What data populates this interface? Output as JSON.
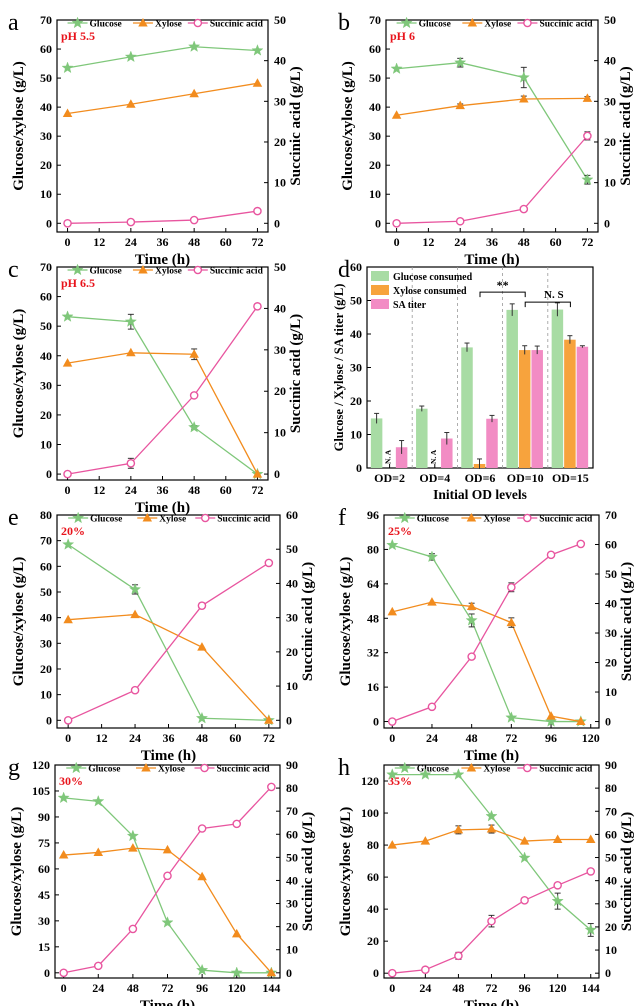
{
  "figure": {
    "panel_count": 8
  },
  "colors": {
    "glucose": "#7fc77a",
    "xylose": "#f28c1e",
    "sa": "#e8559f",
    "bar_glucose": "#a8dca4",
    "bar_xylose": "#f7a33d",
    "bar_sa": "#f28cc4",
    "annotation_red": "#e8131b"
  },
  "chart_data": [
    {
      "panel": "a",
      "type": "line",
      "annotation": "pH 5.5",
      "xlabel": "Time (h)",
      "ylabel_left": "Glucose/xylose (g/L)",
      "ylabel_right": "Succinic acid (g/L)",
      "x_ticks": [
        0,
        12,
        24,
        36,
        48,
        60,
        72
      ],
      "xlim": [
        -4,
        76
      ],
      "y_left_ticks": [
        0,
        10,
        20,
        30,
        40,
        50,
        60,
        70
      ],
      "ylim_left": [
        -3,
        70
      ],
      "y_right_ticks": [
        0,
        10,
        20,
        30,
        40,
        50
      ],
      "ylim_right": [
        -2.14,
        50
      ],
      "series": [
        {
          "name": "Glucose",
          "axis": "left",
          "marker": "star",
          "x": [
            0,
            24,
            48,
            72
          ],
          "values": [
            53.5,
            57.3,
            60.8,
            59.5
          ],
          "err": [
            0,
            0,
            0,
            0
          ]
        },
        {
          "name": "Xylose",
          "axis": "left",
          "marker": "triangle",
          "x": [
            0,
            24,
            48,
            72
          ],
          "values": [
            37.8,
            41.0,
            44.6,
            48.2
          ],
          "err": [
            0,
            0,
            0,
            0
          ]
        },
        {
          "name": "Succinic acid",
          "axis": "right",
          "marker": "circle",
          "x": [
            0,
            24,
            48,
            72
          ],
          "values": [
            0.0,
            0.3,
            0.8,
            3.0
          ],
          "err": [
            0,
            0,
            0,
            0
          ]
        }
      ]
    },
    {
      "panel": "b",
      "type": "line",
      "annotation": "pH 6",
      "xlabel": "Time (h)",
      "ylabel_left": "Glucose/xylose (g/L)",
      "ylabel_right": "Succinic acid (g/L)",
      "x_ticks": [
        0,
        12,
        24,
        36,
        48,
        60,
        72
      ],
      "xlim": [
        -4,
        76
      ],
      "y_left_ticks": [
        0,
        10,
        20,
        30,
        40,
        50,
        60,
        70
      ],
      "ylim_left": [
        -3,
        70
      ],
      "y_right_ticks": [
        0,
        10,
        20,
        30,
        40,
        50
      ],
      "ylim_right": [
        -2.14,
        50
      ],
      "series": [
        {
          "name": "Glucose",
          "axis": "left",
          "marker": "star",
          "x": [
            0,
            24,
            48,
            72
          ],
          "values": [
            53.2,
            55.3,
            50.2,
            15.0
          ],
          "err": [
            0,
            1.5,
            3.5,
            1.5
          ]
        },
        {
          "name": "Xylose",
          "axis": "left",
          "marker": "triangle",
          "x": [
            0,
            24,
            48,
            72
          ],
          "values": [
            37.2,
            40.5,
            42.8,
            43.0
          ],
          "err": [
            0,
            0.6,
            1.0,
            0.6
          ]
        },
        {
          "name": "Succinic acid",
          "axis": "right",
          "marker": "circle",
          "x": [
            0,
            24,
            48,
            72
          ],
          "values": [
            0.0,
            0.5,
            3.5,
            21.5
          ],
          "err": [
            0,
            0,
            0.4,
            1.0
          ]
        }
      ]
    },
    {
      "panel": "c",
      "type": "line",
      "annotation": "pH 6.5",
      "xlabel": "Time (h)",
      "ylabel_left": "Glucose/xylose (g/L)",
      "ylabel_right": "Succinic acid (g/L)",
      "x_ticks": [
        0,
        12,
        24,
        36,
        48,
        60,
        72
      ],
      "xlim": [
        -4,
        76
      ],
      "y_left_ticks": [
        0,
        10,
        20,
        30,
        40,
        50,
        60,
        70
      ],
      "ylim_left": [
        -2,
        70
      ],
      "y_right_ticks": [
        0,
        10,
        20,
        30,
        40,
        50
      ],
      "ylim_right": [
        -1.43,
        50
      ],
      "series": [
        {
          "name": "Glucose",
          "axis": "left",
          "marker": "star",
          "x": [
            0,
            24,
            48,
            72
          ],
          "values": [
            53.2,
            51.5,
            15.8,
            0.0
          ],
          "err": [
            0,
            2.5,
            0.6,
            0
          ]
        },
        {
          "name": "Xylose",
          "axis": "left",
          "marker": "triangle",
          "x": [
            0,
            24,
            48,
            72
          ],
          "values": [
            37.5,
            41.0,
            40.5,
            0.0
          ],
          "err": [
            0,
            0,
            1.8,
            0
          ]
        },
        {
          "name": "Succinic acid",
          "axis": "right",
          "marker": "circle",
          "x": [
            0,
            24,
            48,
            72
          ],
          "values": [
            0.0,
            2.6,
            19.0,
            40.5
          ],
          "err": [
            0,
            1.2,
            0,
            0
          ]
        }
      ]
    },
    {
      "panel": "d",
      "type": "bar",
      "xlabel": "Initial OD levels",
      "ylabel": "Glucose / Xylose / SA titer (g/L)",
      "categories": [
        "OD=2",
        "OD=4",
        "OD=6",
        "OD=10",
        "OD=15"
      ],
      "ylim": [
        0,
        60
      ],
      "y_ticks": [
        0,
        10,
        20,
        30,
        40,
        50,
        60
      ],
      "series": [
        {
          "name": "Glucose consumed",
          "values": [
            14.8,
            17.7,
            36.0,
            47.2,
            47.3
          ],
          "err": [
            1.5,
            0.8,
            1.3,
            1.8,
            2.0
          ]
        },
        {
          "name": "Xylose consumed",
          "values": [
            0,
            0,
            1.2,
            35.2,
            38.3
          ],
          "err": [
            0,
            0,
            1.5,
            1.3,
            1.2
          ]
        },
        {
          "name": "SA titer",
          "values": [
            6.2,
            8.8,
            14.7,
            35.2,
            36.2
          ],
          "err": [
            2.0,
            1.8,
            1.0,
            1.2,
            0.3
          ]
        }
      ],
      "na_labels": [
        "N. A",
        "N. A"
      ],
      "significance": [
        {
          "label": "**"
        },
        {
          "label": "N. S"
        }
      ]
    },
    {
      "panel": "e",
      "type": "line",
      "annotation": "20%",
      "xlabel": "Time (h)",
      "ylabel_left": "Glucose/xylose (g/L)",
      "ylabel_right": "Succinic acid (g/L)",
      "x_ticks": [
        0,
        12,
        24,
        36,
        48,
        60,
        72
      ],
      "xlim": [
        -4,
        76
      ],
      "y_left_ticks": [
        0,
        10,
        20,
        30,
        40,
        50,
        60,
        70,
        80
      ],
      "ylim_left": [
        -3,
        80
      ],
      "y_right_ticks": [
        0,
        10,
        20,
        30,
        40,
        50,
        60
      ],
      "ylim_right": [
        -2.25,
        60
      ],
      "series": [
        {
          "name": "Glucose",
          "axis": "left",
          "marker": "star",
          "x": [
            0,
            24,
            48,
            72
          ],
          "values": [
            68.5,
            51.0,
            0.8,
            0.0
          ],
          "err": [
            0,
            1.8,
            0,
            0
          ]
        },
        {
          "name": "Xylose",
          "axis": "left",
          "marker": "triangle",
          "x": [
            0,
            24,
            48,
            72
          ],
          "values": [
            39.2,
            41.2,
            28.5,
            0.0
          ],
          "err": [
            0,
            0,
            0,
            0
          ]
        },
        {
          "name": "Succinic acid",
          "axis": "right",
          "marker": "circle",
          "x": [
            0,
            24,
            48,
            72
          ],
          "values": [
            0.0,
            8.8,
            33.5,
            46.0
          ],
          "err": [
            0,
            0,
            0.8,
            0
          ]
        }
      ]
    },
    {
      "panel": "f",
      "type": "line",
      "annotation": "25%",
      "xlabel": "Time (h)",
      "ylabel_left": "Glucose/xylose (g/L)",
      "ylabel_right": "Succinic acid (g/L)",
      "x_ticks": [
        0,
        24,
        48,
        72,
        96,
        120
      ],
      "xlim": [
        -5,
        125
      ],
      "y_left_ticks": [
        0,
        16,
        32,
        48,
        64,
        80,
        96
      ],
      "ylim_left": [
        -3,
        96
      ],
      "y_right_ticks": [
        0,
        10,
        20,
        30,
        40,
        50,
        60,
        70
      ],
      "ylim_right": [
        -2.19,
        70
      ],
      "series": [
        {
          "name": "Glucose",
          "axis": "left",
          "marker": "star",
          "x": [
            0,
            24,
            48,
            72,
            96,
            114
          ],
          "values": [
            82.0,
            76.5,
            47.0,
            1.8,
            0.0,
            0.0
          ],
          "err": [
            0,
            1.5,
            3.0,
            0,
            0,
            0
          ]
        },
        {
          "name": "Xylose",
          "axis": "left",
          "marker": "triangle",
          "x": [
            0,
            24,
            48,
            72,
            96,
            114
          ],
          "values": [
            51.0,
            55.5,
            53.5,
            46.0,
            2.5,
            0.0
          ],
          "err": [
            0,
            0,
            1.5,
            2.2,
            0,
            0
          ]
        },
        {
          "name": "Succinic acid",
          "axis": "right",
          "marker": "circle",
          "x": [
            0,
            24,
            48,
            72,
            96,
            114
          ],
          "values": [
            0.0,
            5.0,
            22.0,
            45.5,
            56.5,
            60.2
          ],
          "err": [
            0,
            0,
            0,
            1.5,
            0,
            0
          ]
        }
      ]
    },
    {
      "panel": "g",
      "type": "line",
      "annotation": "30%",
      "xlabel": "Time (h)",
      "ylabel_left": "Glucose/xylose (g/L)",
      "ylabel_right": "Succinic acid (g/L)",
      "x_ticks": [
        0,
        24,
        48,
        72,
        96,
        120,
        144
      ],
      "xlim": [
        -6,
        150
      ],
      "y_left_ticks": [
        0,
        15,
        30,
        45,
        60,
        75,
        90,
        105,
        120
      ],
      "ylim_left": [
        -3,
        120
      ],
      "y_right_ticks": [
        0,
        10,
        20,
        30,
        40,
        50,
        60,
        70,
        80,
        90
      ],
      "ylim_right": [
        -2.25,
        90
      ],
      "series": [
        {
          "name": "Glucose",
          "axis": "left",
          "marker": "star",
          "x": [
            0,
            24,
            48,
            72,
            96,
            120,
            144
          ],
          "values": [
            101.0,
            99.0,
            79.0,
            29.0,
            1.5,
            0.0,
            0.0
          ],
          "err": [
            0,
            0,
            0,
            0,
            0,
            0,
            0
          ]
        },
        {
          "name": "Xylose",
          "axis": "left",
          "marker": "triangle",
          "x": [
            0,
            24,
            48,
            72,
            96,
            120,
            144
          ],
          "values": [
            68.0,
            69.5,
            72.0,
            71.0,
            55.5,
            22.5,
            0.0
          ],
          "err": [
            0,
            0,
            0,
            0,
            0,
            0,
            0
          ]
        },
        {
          "name": "Succinic acid",
          "axis": "right",
          "marker": "circle",
          "x": [
            0,
            24,
            48,
            72,
            96,
            120,
            144
          ],
          "values": [
            0.0,
            3.0,
            19.0,
            42.0,
            62.5,
            64.5,
            80.5
          ],
          "err": [
            0,
            0,
            0,
            0,
            0,
            0,
            0
          ]
        }
      ]
    },
    {
      "panel": "h",
      "type": "line",
      "annotation": "35%",
      "xlabel": "Time (h)",
      "ylabel_left": "Glucose/xylose (g/L)",
      "ylabel_right": "Succinic acid (g/L)",
      "x_ticks": [
        0,
        24,
        48,
        72,
        96,
        120,
        144
      ],
      "xlim": [
        -6,
        150
      ],
      "y_left_ticks": [
        0,
        20,
        40,
        60,
        80,
        100,
        120
      ],
      "ylim_left": [
        -3,
        130
      ],
      "y_right_ticks": [
        0,
        10,
        20,
        30,
        40,
        50,
        60,
        70,
        80,
        90
      ],
      "ylim_right": [
        -2.08,
        90
      ],
      "series": [
        {
          "name": "Glucose",
          "axis": "left",
          "marker": "star",
          "x": [
            0,
            24,
            48,
            72,
            96,
            120,
            144
          ],
          "values": [
            124.0,
            124.0,
            124.0,
            98.0,
            72.0,
            45.0,
            27.0
          ],
          "err": [
            0,
            0,
            0,
            0,
            0,
            5.0,
            4.0
          ]
        },
        {
          "name": "Xylose",
          "axis": "left",
          "marker": "triangle",
          "x": [
            0,
            24,
            48,
            72,
            96,
            120,
            144
          ],
          "values": [
            80.0,
            82.5,
            89.5,
            90.0,
            82.5,
            83.5,
            83.5
          ],
          "err": [
            0,
            0,
            2.5,
            2.5,
            0,
            0,
            0
          ]
        },
        {
          "name": "Succinic acid",
          "axis": "right",
          "marker": "circle",
          "x": [
            0,
            24,
            48,
            72,
            96,
            120,
            144
          ],
          "values": [
            0.0,
            1.5,
            7.5,
            22.5,
            31.5,
            38.0,
            44.0
          ],
          "err": [
            0,
            0,
            1.5,
            2.5,
            0,
            0,
            0
          ]
        }
      ]
    }
  ]
}
